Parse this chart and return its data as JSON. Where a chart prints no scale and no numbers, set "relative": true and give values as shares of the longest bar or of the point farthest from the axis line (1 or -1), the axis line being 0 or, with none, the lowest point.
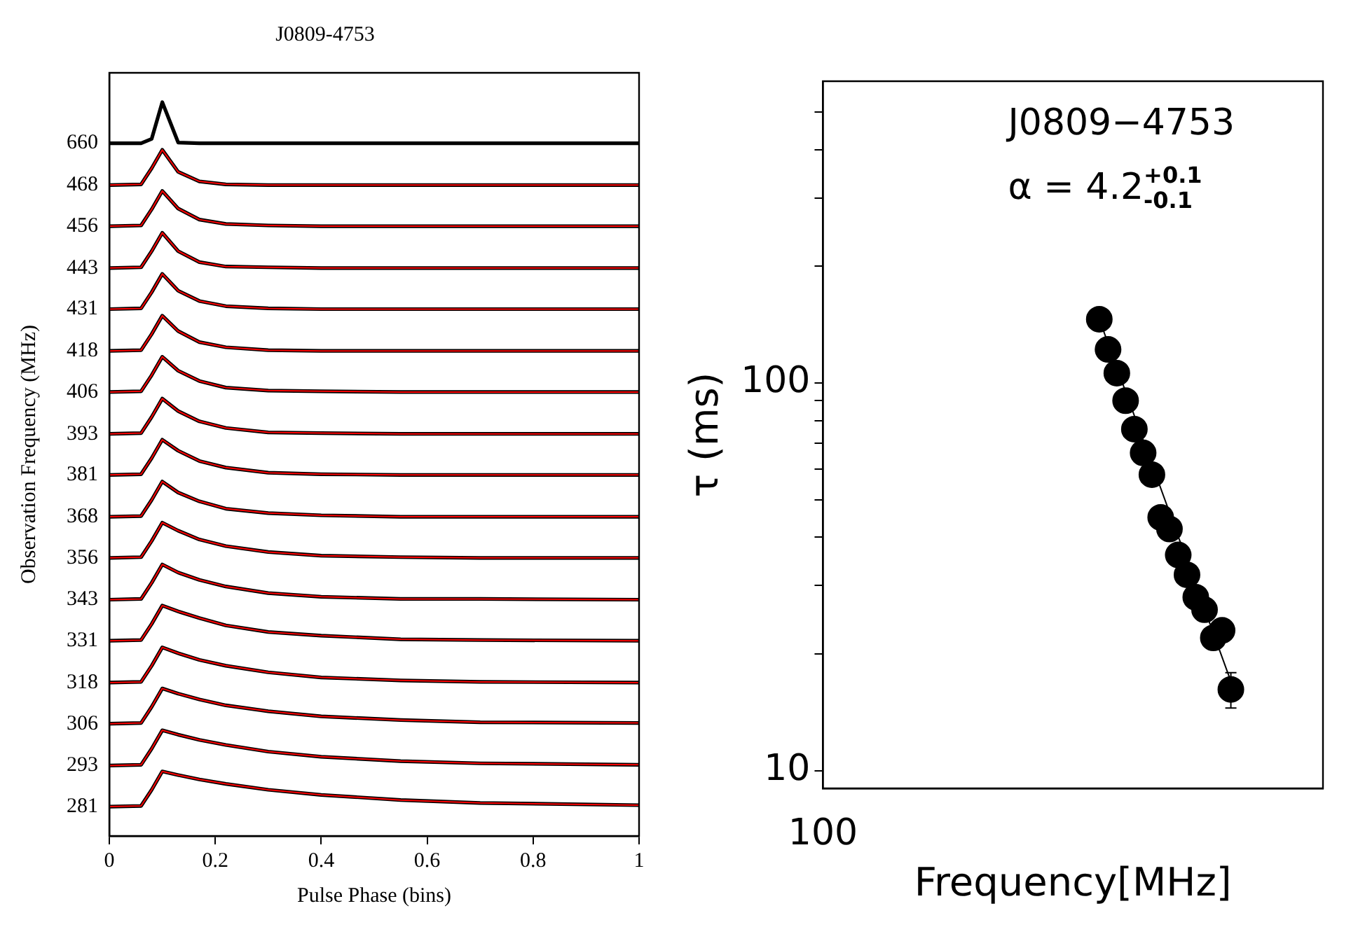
{
  "chart_data": [
    {
      "type": "line",
      "title": "J0809-4753",
      "xlabel": "Pulse Phase (bins)",
      "ylabel": "Observation Frequency (MHz)",
      "relative": true,
      "x": [
        0,
        0.06,
        0.08,
        0.1,
        0.13,
        0.17,
        0.22,
        0.3,
        0.4,
        0.55,
        0.7,
        1.0
      ],
      "xlim": [
        0,
        1
      ],
      "xticks": [
        0,
        0.2,
        0.4,
        0.6,
        0.8,
        1
      ],
      "grid": false,
      "legend": false,
      "marker": "none",
      "series": [
        {
          "name": "281",
          "color": "#000000",
          "values": [
            0.04,
            0.041,
            0.063,
            0.088,
            0.083,
            0.077,
            0.071,
            0.063,
            0.056,
            0.049,
            0.045,
            0.042
          ]
        },
        {
          "name": "293",
          "color": "#000000",
          "values": [
            0.096,
            0.097,
            0.119,
            0.144,
            0.138,
            0.131,
            0.124,
            0.115,
            0.108,
            0.102,
            0.099,
            0.097
          ]
        },
        {
          "name": "306",
          "color": "#000000",
          "values": [
            0.153,
            0.154,
            0.176,
            0.201,
            0.194,
            0.186,
            0.178,
            0.17,
            0.163,
            0.158,
            0.155,
            0.154
          ]
        },
        {
          "name": "318",
          "color": "#000000",
          "values": [
            0.209,
            0.21,
            0.232,
            0.257,
            0.249,
            0.24,
            0.232,
            0.223,
            0.216,
            0.212,
            0.21,
            0.209
          ]
        },
        {
          "name": "331",
          "color": "#000000",
          "values": [
            0.266,
            0.267,
            0.289,
            0.314,
            0.306,
            0.297,
            0.287,
            0.278,
            0.273,
            0.268,
            0.267,
            0.266
          ]
        },
        {
          "name": "343",
          "color": "#000000",
          "values": [
            0.322,
            0.323,
            0.345,
            0.37,
            0.359,
            0.349,
            0.34,
            0.331,
            0.326,
            0.323,
            0.323,
            0.322
          ]
        },
        {
          "name": "356",
          "color": "#000000",
          "values": [
            0.379,
            0.38,
            0.402,
            0.427,
            0.416,
            0.404,
            0.395,
            0.387,
            0.382,
            0.38,
            0.379,
            0.379
          ]
        },
        {
          "name": "368",
          "color": "#000000",
          "values": [
            0.435,
            0.436,
            0.458,
            0.483,
            0.468,
            0.456,
            0.446,
            0.44,
            0.437,
            0.435,
            0.435,
            0.435
          ]
        },
        {
          "name": "381",
          "color": "#000000",
          "values": [
            0.492,
            0.493,
            0.515,
            0.54,
            0.525,
            0.511,
            0.502,
            0.495,
            0.493,
            0.492,
            0.492,
            0.492
          ]
        },
        {
          "name": "393",
          "color": "#000000",
          "values": [
            0.548,
            0.549,
            0.571,
            0.596,
            0.579,
            0.565,
            0.556,
            0.55,
            0.549,
            0.548,
            0.548,
            0.548
          ]
        },
        {
          "name": "406",
          "color": "#000000",
          "values": [
            0.605,
            0.606,
            0.628,
            0.653,
            0.634,
            0.62,
            0.611,
            0.607,
            0.606,
            0.605,
            0.605,
            0.605
          ]
        },
        {
          "name": "418",
          "color": "#000000",
          "values": [
            0.661,
            0.662,
            0.684,
            0.709,
            0.688,
            0.673,
            0.666,
            0.662,
            0.661,
            0.661,
            0.661,
            0.661
          ]
        },
        {
          "name": "431",
          "color": "#000000",
          "values": [
            0.718,
            0.719,
            0.741,
            0.766,
            0.743,
            0.729,
            0.722,
            0.719,
            0.718,
            0.718,
            0.718,
            0.718
          ]
        },
        {
          "name": "443",
          "color": "#000000",
          "values": [
            0.774,
            0.775,
            0.797,
            0.822,
            0.797,
            0.782,
            0.776,
            0.775,
            0.774,
            0.774,
            0.774,
            0.774
          ]
        },
        {
          "name": "456",
          "color": "#000000",
          "values": [
            0.831,
            0.832,
            0.854,
            0.879,
            0.855,
            0.84,
            0.834,
            0.832,
            0.831,
            0.831,
            0.831,
            0.831
          ]
        },
        {
          "name": "468",
          "color": "#000000",
          "values": [
            0.887,
            0.888,
            0.91,
            0.935,
            0.905,
            0.892,
            0.888,
            0.887,
            0.887,
            0.887,
            0.887,
            0.887
          ]
        },
        {
          "name": "660",
          "color": "#000000",
          "values": [
            0.944,
            0.944,
            0.95,
            1,
            0.945,
            0.944,
            0.944,
            0.944,
            0.944,
            0.944,
            0.944,
            0.944
          ]
        },
        {
          "color": "#ff0000",
          "values": [
            0.04,
            0.041,
            0.063,
            0.088,
            0.083,
            0.077,
            0.071,
            0.063,
            0.056,
            0.049,
            0.045,
            0.042
          ]
        },
        {
          "color": "#ff0000",
          "values": [
            0.096,
            0.097,
            0.119,
            0.144,
            0.138,
            0.131,
            0.124,
            0.115,
            0.108,
            0.102,
            0.099,
            0.097
          ]
        },
        {
          "color": "#ff0000",
          "values": [
            0.153,
            0.154,
            0.176,
            0.201,
            0.194,
            0.186,
            0.178,
            0.17,
            0.163,
            0.158,
            0.155,
            0.154
          ]
        },
        {
          "color": "#ff0000",
          "values": [
            0.209,
            0.21,
            0.232,
            0.257,
            0.249,
            0.24,
            0.232,
            0.223,
            0.216,
            0.212,
            0.21,
            0.209
          ]
        },
        {
          "color": "#ff0000",
          "values": [
            0.266,
            0.267,
            0.289,
            0.314,
            0.306,
            0.297,
            0.287,
            0.278,
            0.273,
            0.268,
            0.267,
            0.266
          ]
        },
        {
          "color": "#ff0000",
          "values": [
            0.322,
            0.323,
            0.345,
            0.37,
            0.359,
            0.349,
            0.34,
            0.331,
            0.326,
            0.323,
            0.323,
            0.322
          ]
        },
        {
          "color": "#ff0000",
          "values": [
            0.379,
            0.38,
            0.402,
            0.427,
            0.416,
            0.404,
            0.395,
            0.387,
            0.382,
            0.38,
            0.379,
            0.379
          ]
        },
        {
          "color": "#ff0000",
          "values": [
            0.435,
            0.436,
            0.458,
            0.483,
            0.468,
            0.456,
            0.446,
            0.44,
            0.437,
            0.435,
            0.435,
            0.435
          ]
        },
        {
          "color": "#ff0000",
          "values": [
            0.492,
            0.493,
            0.515,
            0.54,
            0.525,
            0.511,
            0.502,
            0.495,
            0.493,
            0.492,
            0.492,
            0.492
          ]
        },
        {
          "color": "#ff0000",
          "values": [
            0.548,
            0.549,
            0.571,
            0.596,
            0.579,
            0.565,
            0.556,
            0.55,
            0.549,
            0.548,
            0.548,
            0.548
          ]
        },
        {
          "color": "#ff0000",
          "values": [
            0.605,
            0.606,
            0.628,
            0.653,
            0.634,
            0.62,
            0.611,
            0.607,
            0.606,
            0.605,
            0.605,
            0.605
          ]
        },
        {
          "color": "#ff0000",
          "values": [
            0.661,
            0.662,
            0.684,
            0.709,
            0.688,
            0.673,
            0.666,
            0.662,
            0.661,
            0.661,
            0.661,
            0.661
          ]
        },
        {
          "color": "#ff0000",
          "values": [
            0.718,
            0.719,
            0.741,
            0.766,
            0.743,
            0.729,
            0.722,
            0.719,
            0.718,
            0.718,
            0.718,
            0.718
          ]
        },
        {
          "color": "#ff0000",
          "values": [
            0.774,
            0.775,
            0.797,
            0.822,
            0.797,
            0.782,
            0.776,
            0.775,
            0.774,
            0.774,
            0.774,
            0.774
          ]
        },
        {
          "color": "#ff0000",
          "values": [
            0.831,
            0.832,
            0.854,
            0.879,
            0.855,
            0.84,
            0.834,
            0.832,
            0.831,
            0.831,
            0.831,
            0.831
          ]
        },
        {
          "color": "#ff0000",
          "values": [
            0.887,
            0.888,
            0.91,
            0.935,
            0.905,
            0.892,
            0.888,
            0.887,
            0.887,
            0.887,
            0.887,
            0.887
          ]
        }
      ]
    },
    {
      "type": "scatter",
      "xlabel": "Frequency[MHz]",
      "ylabel": "τ (ms)",
      "annotations": [
        "J0809−4753",
        "α = 4.2$^{+0.1}$$_{-0.1}$",
        "100"
      ],
      "categories": [
        null,
        null,
        null,
        null,
        null,
        null,
        null,
        null,
        null,
        null,
        null,
        null,
        null,
        null,
        null,
        null,
        null,
        null,
        null,
        null,
        null,
        null,
        null,
        null,
        null,
        null,
        null,
        null,
        null,
        null,
        null,
        null,
        null,
        null,
        null,
        null,
        null,
        null,
        null,
        null,
        null,
        null,
        null,
        null,
        null,
        null,
        null,
        null,
        null,
        null,
        null,
        null,
        null,
        null,
        null,
        null,
        null
      ],
      "log": "y",
      "ylim": [
        9,
        600
      ],
      "yticks": [
        10,
        {
          "value": 20,
          "label": null
        },
        {
          "value": 30,
          "label": null
        },
        {
          "value": 40,
          "label": null
        },
        {
          "value": 50,
          "label": null
        },
        {
          "value": 60,
          "label": null
        },
        {
          "value": 70,
          "label": null
        },
        {
          "value": 80,
          "label": null
        },
        {
          "value": 90,
          "label": null
        },
        100,
        {
          "value": 200,
          "label": null
        },
        {
          "value": 300,
          "label": null
        },
        {
          "value": 400,
          "label": null
        },
        {
          "value": 500,
          "label": null
        }
      ],
      "grid": false,
      "legend": false,
      "marker": "circle",
      "series": [
        {
          "color": "#000000",
          "values": [
            null,
            null,
            null,
            null,
            null,
            null,
            null,
            null,
            null,
            null,
            null,
            null,
            null,
            null,
            null,
            null,
            null,
            null,
            null,
            null,
            null,
            null,
            null,
            null,
            null,
            null,
            null,
            null,
            null,
            null,
            null,
            146,
            122,
            106,
            90,
            76,
            66,
            58,
            45,
            42,
            36,
            32,
            28,
            26,
            22,
            23,
            16.2,
            null,
            null,
            null,
            null,
            null,
            null,
            null,
            null,
            null,
            null
          ],
          "errors": [
            null,
            null,
            null,
            null,
            null,
            null,
            null,
            null,
            null,
            null,
            null,
            null,
            null,
            null,
            null,
            null,
            null,
            null,
            null,
            null,
            null,
            null,
            null,
            null,
            null,
            null,
            null,
            null,
            null,
            null,
            null,
            null,
            null,
            null,
            null,
            null,
            null,
            null,
            null,
            null,
            null,
            null,
            null,
            null,
            null,
            1.5,
            1.7,
            null,
            null,
            null,
            null,
            null,
            null,
            null,
            null,
            null,
            null
          ]
        },
        {
          "type": "line",
          "color": "#000000",
          "marker": "none",
          "values": [
            null,
            null,
            null,
            null,
            null,
            null,
            null,
            null,
            null,
            null,
            null,
            null,
            null,
            null,
            null,
            null,
            null,
            null,
            null,
            null,
            null,
            null,
            null,
            null,
            null,
            null,
            null,
            null,
            null,
            null,
            null,
            146,
            null,
            null,
            null,
            null,
            null,
            null,
            null,
            null,
            null,
            null,
            null,
            null,
            null,
            null,
            17,
            null,
            null,
            null,
            null,
            null,
            null,
            null,
            null,
            null,
            null
          ]
        }
      ]
    }
  ]
}
